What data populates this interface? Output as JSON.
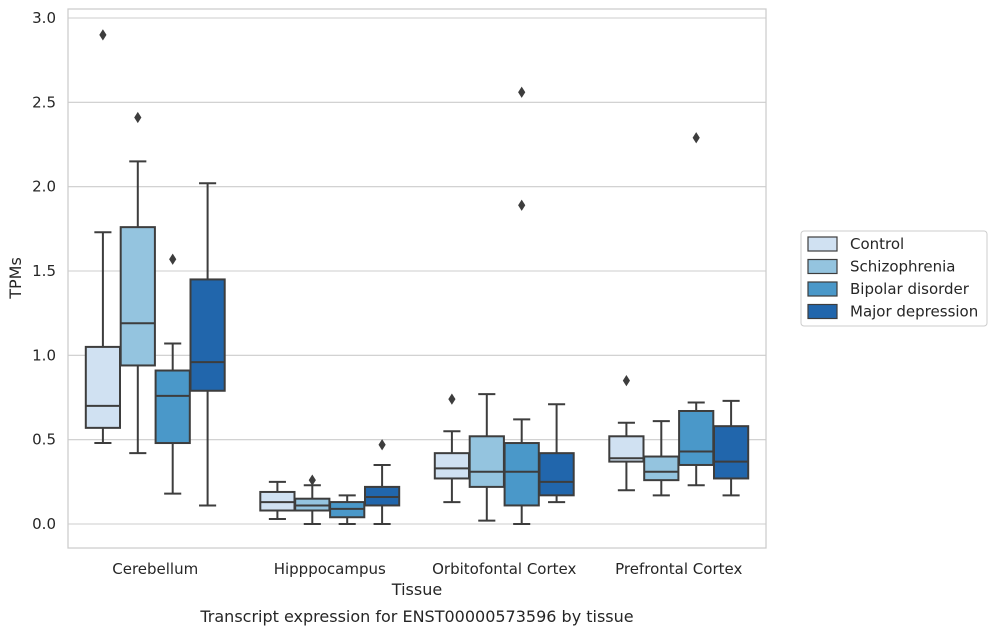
{
  "chart_data": {
    "type": "box",
    "title": "",
    "caption": "Transcript expression for ENST00000573596 by tissue",
    "xlabel": "Tissue",
    "ylabel": "TPMs",
    "ylim": [
      -0.14,
      3.05
    ],
    "yticks": [
      0.0,
      0.5,
      1.0,
      1.5,
      2.0,
      2.5,
      3.0
    ],
    "ytick_labels": [
      "0.0",
      "0.5",
      "1.0",
      "1.5",
      "2.0",
      "2.5",
      "3.0"
    ],
    "grid": "horizontal",
    "legend_position": "right",
    "categories": [
      "Cerebellum",
      "Hipppocampus",
      "Orbitofontal Cortex",
      "Prefrontal Cortex"
    ],
    "series": [
      {
        "name": "Control",
        "color": "#d0e1f2",
        "boxes": [
          {
            "whislo": 0.48,
            "q1": 0.57,
            "med": 0.7,
            "q3": 1.05,
            "whishi": 1.73,
            "fliers": [
              2.9
            ]
          },
          {
            "whislo": 0.03,
            "q1": 0.08,
            "med": 0.13,
            "q3": 0.19,
            "whishi": 0.25,
            "fliers": []
          },
          {
            "whislo": 0.13,
            "q1": 0.27,
            "med": 0.33,
            "q3": 0.42,
            "whishi": 0.55,
            "fliers": [
              0.74
            ]
          },
          {
            "whislo": 0.2,
            "q1": 0.37,
            "med": 0.39,
            "q3": 0.52,
            "whishi": 0.6,
            "fliers": [
              0.85
            ]
          }
        ]
      },
      {
        "name": "Schizophrenia",
        "color": "#94c4df",
        "boxes": [
          {
            "whislo": 0.42,
            "q1": 0.94,
            "med": 1.19,
            "q3": 1.76,
            "whishi": 2.15,
            "fliers": [
              2.41
            ]
          },
          {
            "whislo": 0.0,
            "q1": 0.08,
            "med": 0.11,
            "q3": 0.15,
            "whishi": 0.23,
            "fliers": [
              0.26
            ]
          },
          {
            "whislo": 0.02,
            "q1": 0.22,
            "med": 0.31,
            "q3": 0.52,
            "whishi": 0.77,
            "fliers": []
          },
          {
            "whislo": 0.17,
            "q1": 0.26,
            "med": 0.31,
            "q3": 0.4,
            "whishi": 0.61,
            "fliers": []
          }
        ]
      },
      {
        "name": "Bipolar disorder",
        "color": "#4a98c9",
        "boxes": [
          {
            "whislo": 0.18,
            "q1": 0.48,
            "med": 0.76,
            "q3": 0.91,
            "whishi": 1.07,
            "fliers": [
              1.57
            ]
          },
          {
            "whislo": 0.0,
            "q1": 0.04,
            "med": 0.09,
            "q3": 0.13,
            "whishi": 0.17,
            "fliers": []
          },
          {
            "whislo": 0.0,
            "q1": 0.11,
            "med": 0.31,
            "q3": 0.48,
            "whishi": 0.62,
            "fliers": [
              1.89,
              2.56
            ]
          },
          {
            "whislo": 0.23,
            "q1": 0.35,
            "med": 0.43,
            "q3": 0.67,
            "whishi": 0.72,
            "fliers": [
              2.29
            ]
          }
        ]
      },
      {
        "name": "Major depression",
        "color": "#2166ac",
        "boxes": [
          {
            "whislo": 0.11,
            "q1": 0.79,
            "med": 0.96,
            "q3": 1.45,
            "whishi": 2.02,
            "fliers": []
          },
          {
            "whislo": 0.0,
            "q1": 0.11,
            "med": 0.16,
            "q3": 0.22,
            "whishi": 0.35,
            "fliers": [
              0.47
            ]
          },
          {
            "whislo": 0.13,
            "q1": 0.17,
            "med": 0.25,
            "q3": 0.42,
            "whishi": 0.71,
            "fliers": []
          },
          {
            "whislo": 0.17,
            "q1": 0.27,
            "med": 0.37,
            "q3": 0.58,
            "whishi": 0.73,
            "fliers": []
          }
        ]
      }
    ]
  }
}
